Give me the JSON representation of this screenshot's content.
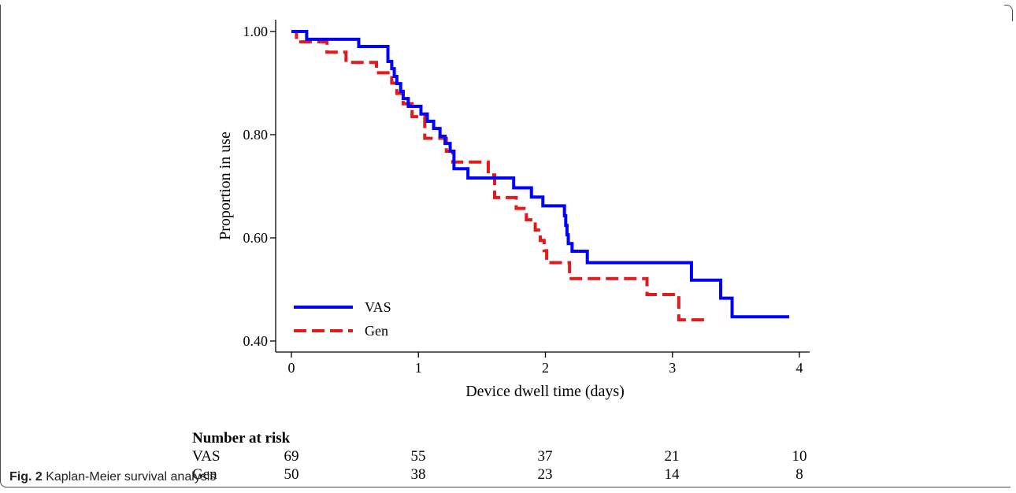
{
  "chart_data": {
    "type": "line",
    "step": true,
    "ylabel": "Proportion in use",
    "xlabel": "Device dwell time (days)",
    "xlim": [
      0,
      4
    ],
    "ylim": [
      0.4,
      1.0
    ],
    "xticks": [
      "0",
      "1",
      "2",
      "3",
      "4"
    ],
    "yticks": [
      "0.40",
      "0.60",
      "0.80",
      "1.00"
    ],
    "legend_position": "bottom-left",
    "series": [
      {
        "name": "VAS",
        "color": "#0000ff",
        "style": "solid",
        "x": [
          0,
          0.12,
          0.53,
          0.76,
          0.79,
          0.81,
          0.83,
          0.86,
          0.88,
          0.92,
          1.02,
          1.07,
          1.12,
          1.17,
          1.21,
          1.25,
          1.28,
          1.39,
          1.65,
          1.75,
          1.89,
          1.98,
          2.15,
          2.16,
          2.17,
          2.18,
          2.21,
          2.33,
          3.15,
          3.38,
          3.47,
          3.92
        ],
        "y": [
          1.0,
          0.985,
          0.971,
          0.942,
          0.928,
          0.913,
          0.899,
          0.884,
          0.87,
          0.855,
          0.84,
          0.826,
          0.812,
          0.797,
          0.783,
          0.768,
          0.734,
          0.716,
          0.716,
          0.697,
          0.679,
          0.662,
          0.643,
          0.624,
          0.606,
          0.589,
          0.574,
          0.552,
          0.518,
          0.483,
          0.447,
          0.447
        ]
      },
      {
        "name": "Gen",
        "color": "#e31a1c",
        "style": "dashed",
        "x": [
          0,
          0.04,
          0.28,
          0.43,
          0.67,
          0.79,
          0.83,
          0.88,
          0.95,
          1.05,
          1.22,
          1.27,
          1.55,
          1.6,
          1.77,
          1.85,
          1.92,
          1.96,
          1.99,
          2.01,
          2.19,
          2.5,
          2.8,
          3.05,
          3.25
        ],
        "y": [
          1.0,
          0.98,
          0.96,
          0.94,
          0.92,
          0.9,
          0.88,
          0.86,
          0.835,
          0.793,
          0.768,
          0.747,
          0.722,
          0.678,
          0.657,
          0.635,
          0.615,
          0.595,
          0.575,
          0.552,
          0.521,
          0.521,
          0.49,
          0.441,
          0.441
        ]
      }
    ]
  },
  "risk_table": {
    "title": "Number at risk",
    "rows": [
      {
        "label": "VAS",
        "values": [
          "69",
          "55",
          "37",
          "21",
          "10"
        ]
      },
      {
        "label": "Gen",
        "values": [
          "50",
          "38",
          "23",
          "14",
          "8"
        ]
      }
    ]
  },
  "caption": {
    "label": "Fig. 2",
    "text": "Kaplan-Meier survival analysis"
  }
}
